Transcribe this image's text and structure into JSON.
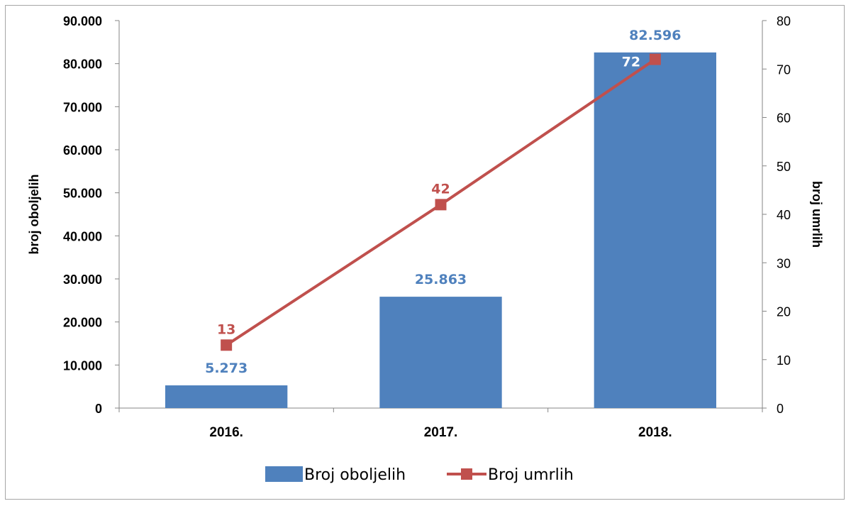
{
  "chart_data": {
    "type": "bar",
    "categories": [
      "2016.",
      "2017.",
      "2018."
    ],
    "series": [
      {
        "name": "Broj oboljelih",
        "type": "bar",
        "axis": "left",
        "values": [
          5273,
          25863,
          82596
        ],
        "labels": [
          "5.273",
          "25.863",
          "82.596"
        ],
        "color": "#4f81bd",
        "label_color": "#4f81bd"
      },
      {
        "name": "Broj umrlih",
        "type": "line",
        "axis": "right",
        "values": [
          13,
          42,
          72
        ],
        "labels": [
          "13",
          "42",
          "72"
        ],
        "color": "#c0504d",
        "label_color": "#c0504d",
        "last_label_color": "#ffffff"
      }
    ],
    "y_left": {
      "label": "broj oboljelih",
      "ylim": [
        0,
        90000
      ],
      "ticks": [
        "0",
        "10.000",
        "20.000",
        "30.000",
        "40.000",
        "50.000",
        "60.000",
        "70.000",
        "80.000",
        "90.000"
      ]
    },
    "y_right": {
      "label": "broj umrlih",
      "ylim": [
        0,
        80
      ],
      "ticks": [
        "0",
        "10",
        "20",
        "30",
        "40",
        "50",
        "60",
        "70",
        "80"
      ]
    },
    "grid": false,
    "legend": "bottom"
  }
}
